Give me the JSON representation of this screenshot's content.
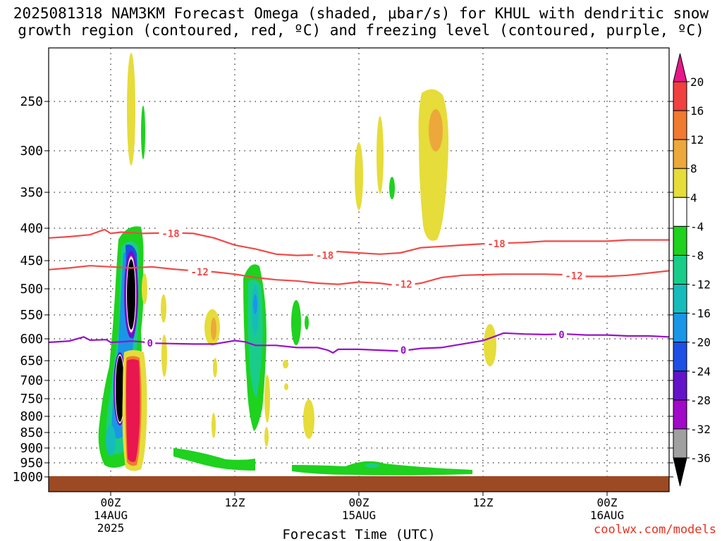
{
  "title_line1": "2025081318 NAM3KM Forecast Omega (shaded, μbar/s) for KHUL with dendritic snow",
  "title_line2": "growth region (contoured, red, ºC) and freezing level (contoured, purple, ºC)",
  "credit": "coolwx.com/models",
  "chart_data": {
    "type": "heatmap",
    "title": "2025081318 NAM3KM Forecast Omega (shaded, μbar/s) for KHUL with dendritic snow growth region (contoured, red, ºC) and freezing level (contoured, purple, ºC)",
    "xlabel": "Forecast Time (UTC)",
    "ylabel": "",
    "y_scale": "log-pressure",
    "y_axis": {
      "unit": "hPa",
      "ticks": [
        250,
        300,
        350,
        400,
        450,
        500,
        550,
        600,
        650,
        700,
        750,
        800,
        850,
        900,
        950,
        1000
      ],
      "tick_labels": [
        "250",
        "300",
        "350",
        "400",
        "450",
        "500",
        "550",
        "600",
        "650",
        "700",
        "750",
        "800",
        "850",
        "900",
        "950",
        "1000"
      ],
      "range": [
        200,
        1030
      ]
    },
    "x_axis": {
      "unit": "forecast hour",
      "range": [
        0,
        60
      ],
      "ticks": [
        {
          "hour": 6,
          "line1": "00Z",
          "line2": "14AUG",
          "line3": "2025"
        },
        {
          "hour": 18,
          "line1": "12Z",
          "line2": "",
          "line3": ""
        },
        {
          "hour": 30,
          "line1": "00Z",
          "line2": "15AUG",
          "line3": ""
        },
        {
          "hour": 42,
          "line1": "12Z",
          "line2": "",
          "line3": ""
        },
        {
          "hour": 54,
          "line1": "00Z",
          "line2": "16AUG",
          "line3": ""
        }
      ]
    },
    "grid": true,
    "colorbar": {
      "labels": [
        "20",
        "16",
        "12",
        "8",
        "4",
        "-4",
        "-8",
        "-12",
        "-16",
        "-20",
        "-24",
        "-28",
        "-32",
        "-36"
      ],
      "colors": [
        "#e8174f",
        "#f04040",
        "#f07a30",
        "#eca83a",
        "#e6dc3a",
        "#ffffff",
        "#1ed21e",
        "#1acc8a",
        "#16bcbc",
        "#1a96e6",
        "#1e50e6",
        "#6414c8",
        "#a00ac8",
        "#a0a0a0"
      ],
      "top_arrow_color": "#e8178a",
      "bottom_arrow_color": "#000000"
    },
    "contours": [
      {
        "label": "-18",
        "color": "#f04a48",
        "points": [
          [
            0,
            415
          ],
          [
            2,
            413
          ],
          [
            4,
            410
          ],
          [
            5.4,
            402
          ],
          [
            6,
            408
          ],
          [
            7,
            406
          ],
          [
            9,
            408
          ],
          [
            12,
            407
          ],
          [
            14,
            408
          ],
          [
            16,
            415
          ],
          [
            18,
            426
          ],
          [
            20,
            432
          ],
          [
            22,
            440
          ],
          [
            24,
            442
          ],
          [
            26,
            441
          ],
          [
            28,
            436
          ],
          [
            30,
            438
          ],
          [
            32,
            440
          ],
          [
            34,
            438
          ],
          [
            36,
            430
          ],
          [
            38,
            428
          ],
          [
            40,
            426
          ],
          [
            42,
            424
          ],
          [
            44,
            423
          ],
          [
            46,
            422
          ],
          [
            48,
            420
          ],
          [
            50,
            420
          ],
          [
            52,
            420
          ],
          [
            54,
            420
          ],
          [
            56,
            418
          ],
          [
            58,
            418
          ],
          [
            60,
            418
          ]
        ],
        "labels_at": [
          [
            11.8,
            408
          ],
          [
            26.7,
            442
          ],
          [
            43.3,
            424
          ]
        ]
      },
      {
        "label": "-12",
        "color": "#f04a48",
        "points": [
          [
            0,
            466
          ],
          [
            2,
            463
          ],
          [
            4,
            459
          ],
          [
            6,
            461
          ],
          [
            8,
            463
          ],
          [
            10,
            461
          ],
          [
            12,
            465
          ],
          [
            14,
            468
          ],
          [
            16,
            470
          ],
          [
            18,
            474
          ],
          [
            20,
            480
          ],
          [
            22,
            484
          ],
          [
            24,
            486
          ],
          [
            26,
            490
          ],
          [
            28,
            492
          ],
          [
            30,
            488
          ],
          [
            32,
            490
          ],
          [
            34,
            495
          ],
          [
            36,
            490
          ],
          [
            38,
            480
          ],
          [
            40,
            476
          ],
          [
            42,
            475
          ],
          [
            44,
            474
          ],
          [
            46,
            474
          ],
          [
            48,
            474
          ],
          [
            50,
            475
          ],
          [
            52,
            478
          ],
          [
            54,
            478
          ],
          [
            56,
            476
          ],
          [
            58,
            472
          ],
          [
            60,
            468
          ]
        ],
        "labels_at": [
          [
            14.6,
            470
          ],
          [
            34.3,
            492
          ],
          [
            50.8,
            477
          ]
        ]
      },
      {
        "label": "0",
        "color": "#9a10c8",
        "points": [
          [
            0,
            608
          ],
          [
            2,
            605
          ],
          [
            3.4,
            596
          ],
          [
            4,
            603
          ],
          [
            5.6,
            602
          ],
          [
            6,
            608
          ],
          [
            7,
            607
          ],
          [
            8,
            605
          ],
          [
            9,
            607
          ],
          [
            10,
            610
          ],
          [
            12,
            611
          ],
          [
            14,
            612
          ],
          [
            16,
            612
          ],
          [
            18,
            604
          ],
          [
            19,
            607
          ],
          [
            20,
            615
          ],
          [
            22,
            615
          ],
          [
            24,
            620
          ],
          [
            26,
            620
          ],
          [
            27,
            626
          ],
          [
            27.5,
            632
          ],
          [
            28,
            624
          ],
          [
            30,
            624
          ],
          [
            32,
            626
          ],
          [
            34,
            628
          ],
          [
            36,
            622
          ],
          [
            38,
            620
          ],
          [
            40,
            612
          ],
          [
            42,
            604
          ],
          [
            43,
            596
          ],
          [
            44,
            588
          ],
          [
            46,
            590
          ],
          [
            48,
            591
          ],
          [
            50,
            590
          ],
          [
            52,
            592
          ],
          [
            54,
            592
          ],
          [
            56,
            594
          ],
          [
            58,
            594
          ],
          [
            60,
            596
          ]
        ],
        "labels_at": [
          [
            9.8,
            610
          ],
          [
            34.3,
            626
          ],
          [
            49.6,
            591
          ]
        ]
      }
    ],
    "terrain": {
      "label": "ground",
      "color": "#9c4a24",
      "top_hpa": 985
    }
  },
  "plot_annotation_labels": [
    "-18",
    "-18",
    "-18",
    "-12",
    "-12",
    "-12",
    "0",
    "0",
    "0"
  ]
}
